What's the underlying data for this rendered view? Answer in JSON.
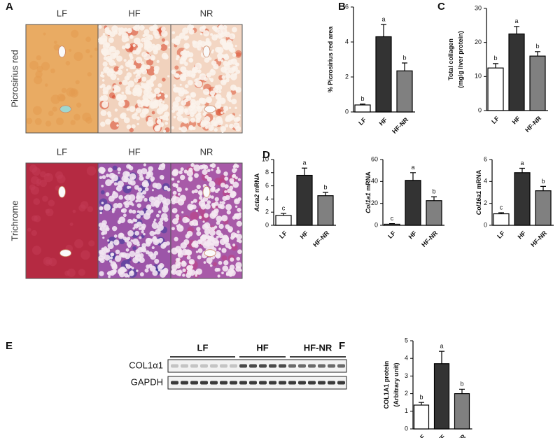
{
  "figure": {
    "panel_labels": [
      "A",
      "B",
      "C",
      "D",
      "E",
      "F"
    ],
    "image_columns": [
      "LF",
      "HF",
      "NR"
    ],
    "image_rows": [
      "Picrosirius red",
      "Trichrome"
    ],
    "blot": {
      "groups": [
        "LF",
        "HF",
        "HF-NR"
      ],
      "rows": [
        "COL1α1",
        "GAPDH"
      ]
    }
  },
  "chart_data": [
    {
      "type": "bar",
      "ylabel": [
        "% Picrosirius red area"
      ],
      "categories": [
        "LF",
        "HF",
        "HF-NR"
      ],
      "values": [
        0.4,
        4.3,
        2.35
      ],
      "errors": [
        0.05,
        0.7,
        0.45
      ],
      "letters": [
        "b",
        "a",
        "b"
      ],
      "colors": [
        "#ffffff",
        "#333333",
        "#808080"
      ],
      "ylim": [
        0,
        6
      ],
      "yticks": [
        0,
        2,
        4,
        6
      ]
    },
    {
      "type": "bar",
      "ylabel": [
        "Total collagen",
        "(mg/g liver protein)"
      ],
      "categories": [
        "LF",
        "HF",
        "HF-NR"
      ],
      "values": [
        12.5,
        22.5,
        16
      ],
      "errors": [
        1.3,
        2.2,
        1.3
      ],
      "letters": [
        "b",
        "a",
        "b"
      ],
      "colors": [
        "#ffffff",
        "#333333",
        "#808080"
      ],
      "ylim": [
        0,
        30
      ],
      "yticks": [
        0,
        10,
        20,
        30
      ]
    },
    {
      "type": "bar",
      "gene": "Acta2",
      "ylabel": [
        "mRNA"
      ],
      "categories": [
        "LF",
        "HF",
        "HF-NR"
      ],
      "values": [
        1.5,
        7.6,
        4.5
      ],
      "errors": [
        0.3,
        1.1,
        0.5
      ],
      "letters": [
        "c",
        "a",
        "b"
      ],
      "colors": [
        "#ffffff",
        "#333333",
        "#808080"
      ],
      "ylim": [
        0,
        10
      ],
      "yticks": [
        0,
        2,
        4,
        6,
        8,
        10
      ]
    },
    {
      "type": "bar",
      "gene": "Col1a1",
      "ylabel": [
        "mRNA"
      ],
      "categories": [
        "LF",
        "HF",
        "HF-NR"
      ],
      "values": [
        1,
        41,
        22.5
      ],
      "errors": [
        0.5,
        7,
        3.5
      ],
      "letters": [
        "c",
        "a",
        "b"
      ],
      "colors": [
        "#ffffff",
        "#333333",
        "#808080"
      ],
      "ylim": [
        0,
        60
      ],
      "yticks": [
        0,
        20,
        40,
        60
      ]
    },
    {
      "type": "bar",
      "gene": "Col16a1",
      "ylabel": [
        "mRNA"
      ],
      "categories": [
        "LF",
        "HF",
        "HF-NR"
      ],
      "values": [
        1.05,
        4.8,
        3.15
      ],
      "errors": [
        0.1,
        0.4,
        0.4
      ],
      "letters": [
        "c",
        "a",
        "b"
      ],
      "colors": [
        "#ffffff",
        "#333333",
        "#808080"
      ],
      "ylim": [
        0,
        6
      ],
      "yticks": [
        0,
        2,
        4,
        6
      ]
    },
    {
      "type": "bar",
      "ylabel": [
        "COL1A1 protein",
        "(Arbitrary unit)"
      ],
      "categories": [
        "LF",
        "HF",
        "HF-NR"
      ],
      "values": [
        1.35,
        3.7,
        2.0
      ],
      "errors": [
        0.15,
        0.7,
        0.25
      ],
      "letters": [
        "b",
        "a",
        "b"
      ],
      "colors": [
        "#ffffff",
        "#333333",
        "#808080"
      ],
      "ylim": [
        0,
        5
      ],
      "yticks": [
        0,
        1,
        2,
        3,
        4,
        5
      ]
    }
  ]
}
